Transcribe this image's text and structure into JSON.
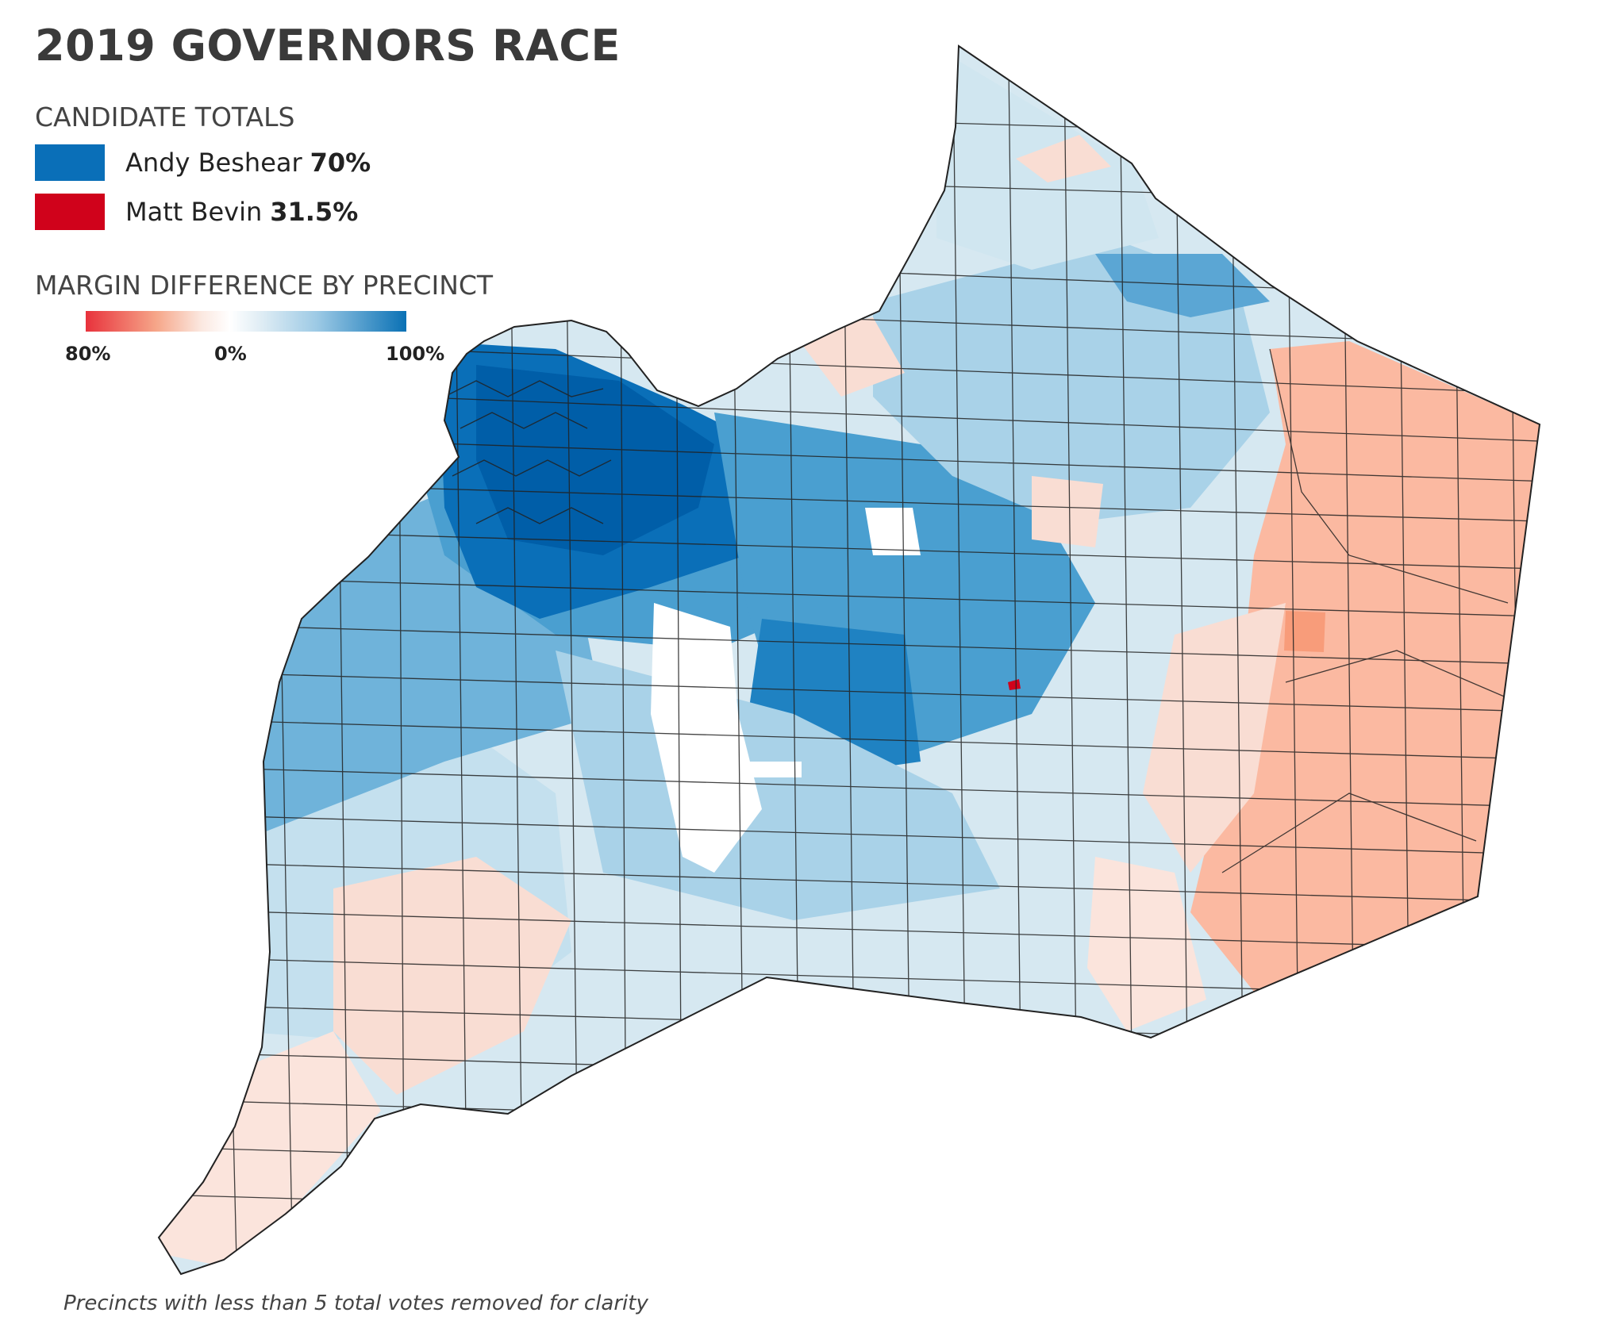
{
  "title": "2019 GOVERNORS RACE",
  "candidate_totals": {
    "label": "CANDIDATE TOTALS",
    "candidates": [
      {
        "name": "Andy Beshear",
        "pct": "70%",
        "color": "#0a6fb8"
      },
      {
        "name": "Matt Bevin",
        "pct": "31.5%",
        "color": "#d0021b"
      }
    ]
  },
  "margin_scale": {
    "label": "MARGIN DIFFERENCE BY PRECINCT",
    "tick_labels": [
      "80%",
      "0%",
      "100%"
    ],
    "colors": {
      "max_red": "#e8323c",
      "neutral": "#ffffff",
      "max_blue": "#0a71b5"
    }
  },
  "footnote": "Precincts with less than 5 total votes removed for clarity",
  "colors": {
    "deep_blue": "#0a6fb8",
    "mid_blue": "#4a9fd0",
    "light_blue": "#a9d2e8",
    "pale_blue": "#d6e8f1",
    "pale_red": "#f9ddd3",
    "salmon": "#fbb9a1",
    "outline": "#222222"
  }
}
